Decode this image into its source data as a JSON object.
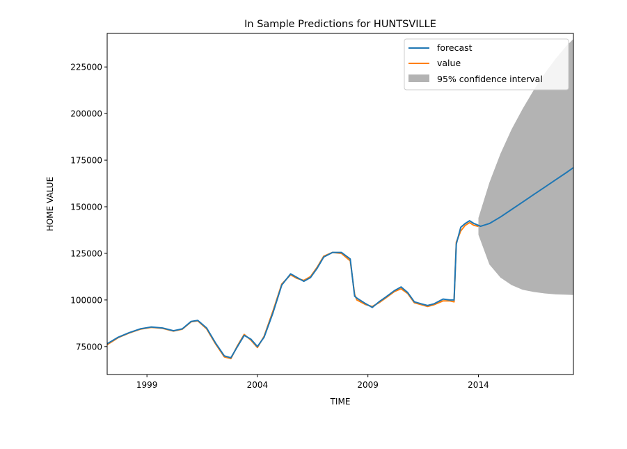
{
  "chart_data": {
    "type": "line",
    "title": "In Sample Predictions for HUNTSVILLE",
    "xlabel": "TIME",
    "ylabel": "HOME VALUE",
    "xlim": [
      1997.2,
      2018.3
    ],
    "ylim": [
      60000,
      243000
    ],
    "x_ticks": [
      1999,
      2004,
      2009,
      2014
    ],
    "x_tick_labels": [
      "1999",
      "2004",
      "2009",
      "2014"
    ],
    "y_ticks": [
      75000,
      100000,
      125000,
      150000,
      175000,
      200000,
      225000
    ],
    "y_tick_labels": [
      "75000",
      "100000",
      "125000",
      "150000",
      "175000",
      "200000",
      "225000"
    ],
    "grid": false,
    "legend_position": "top-right",
    "colors": {
      "forecast": "#1f77b4",
      "value": "#ff7f0e",
      "confidence_interval": "#b3b3b3"
    },
    "series": [
      {
        "name": "forecast",
        "x": [
          1997.2,
          1997.7,
          1998.2,
          1998.7,
          1999.2,
          1999.7,
          2000.2,
          2000.6,
          2001.0,
          2001.3,
          2001.7,
          2002.1,
          2002.5,
          2002.8,
          2003.1,
          2003.4,
          2003.7,
          2004.0,
          2004.3,
          2004.7,
          2005.1,
          2005.5,
          2005.8,
          2006.1,
          2006.4,
          2006.7,
          2007.0,
          2007.4,
          2007.8,
          2008.2,
          2008.4,
          2008.5,
          2008.9,
          2009.2,
          2009.5,
          2009.8,
          2010.2,
          2010.5,
          2010.8,
          2011.1,
          2011.4,
          2011.7,
          2012.0,
          2012.4,
          2012.7,
          2012.9,
          2013.0,
          2013.2,
          2013.4,
          2013.6,
          2013.8,
          2014.1,
          2014.5,
          2015.0,
          2015.5,
          2016.0,
          2016.5,
          2017.0,
          2017.5,
          2018.0,
          2018.3
        ],
        "y": [
          76500,
          80000,
          82500,
          84500,
          85500,
          85000,
          83500,
          84500,
          88500,
          89000,
          85000,
          77000,
          70000,
          69000,
          75000,
          81000,
          79000,
          75000,
          80000,
          93000,
          108000,
          114000,
          112000,
          110000,
          112000,
          117000,
          123000,
          125500,
          125500,
          122000,
          102000,
          101000,
          98000,
          96000,
          99000,
          101500,
          105000,
          107000,
          104000,
          99000,
          98000,
          97000,
          98000,
          100500,
          100000,
          100000,
          130000,
          139000,
          141000,
          142500,
          141000,
          139500,
          141000,
          144500,
          148500,
          152500,
          156500,
          160500,
          164500,
          168500,
          171000
        ]
      },
      {
        "name": "value",
        "x": [
          1997.2,
          1997.7,
          1998.2,
          1998.7,
          1999.2,
          1999.7,
          2000.2,
          2000.6,
          2001.0,
          2001.3,
          2001.7,
          2002.1,
          2002.5,
          2002.8,
          2003.1,
          2003.4,
          2003.7,
          2004.0,
          2004.3,
          2004.7,
          2005.1,
          2005.5,
          2005.8,
          2006.1,
          2006.4,
          2006.7,
          2007.0,
          2007.4,
          2007.8,
          2008.2,
          2008.4,
          2008.5,
          2008.9,
          2009.2,
          2009.5,
          2009.8,
          2010.2,
          2010.5,
          2010.8,
          2011.1,
          2011.4,
          2011.7,
          2012.0,
          2012.4,
          2012.7,
          2012.9,
          2013.0,
          2013.2,
          2013.4,
          2013.6,
          2013.8,
          2014.0
        ],
        "y": [
          76000,
          79800,
          82300,
          84300,
          85300,
          84800,
          83300,
          84300,
          88300,
          88800,
          84500,
          76500,
          69500,
          68500,
          75500,
          81500,
          78500,
          74500,
          80500,
          94000,
          108500,
          113500,
          111500,
          110500,
          112500,
          117500,
          123500,
          125500,
          125000,
          121000,
          103000,
          100000,
          97500,
          96500,
          98500,
          101000,
          104500,
          106000,
          103500,
          98500,
          97500,
          96500,
          97500,
          99500,
          99500,
          99000,
          131000,
          137000,
          140000,
          141500,
          140000,
          139500
        ]
      }
    ],
    "confidence_interval": {
      "name": "95% confidence interval",
      "x": [
        2014.0,
        2014.5,
        2015.0,
        2015.5,
        2016.0,
        2016.5,
        2017.0,
        2017.5,
        2018.0,
        2018.3
      ],
      "upper": [
        144000,
        163000,
        178500,
        191500,
        202500,
        212500,
        221500,
        229500,
        236500,
        240000
      ],
      "lower": [
        135000,
        119000,
        112000,
        108000,
        105500,
        104300,
        103500,
        103000,
        102800,
        102700
      ]
    }
  }
}
